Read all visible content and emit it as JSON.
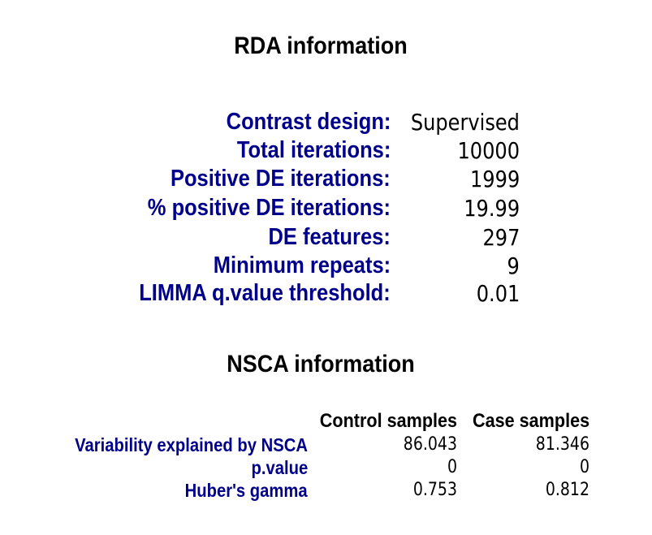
{
  "rda": {
    "title": "RDA information",
    "rows": [
      {
        "label": "Contrast design:",
        "value": "Supervised"
      },
      {
        "label": "Total iterations:",
        "value": "10000"
      },
      {
        "label": "Positive DE iterations:",
        "value": "1999"
      },
      {
        "label": "% positive DE iterations:",
        "value": "19.99"
      },
      {
        "label": "DE features:",
        "value": "297"
      },
      {
        "label": "Minimum repeats:",
        "value": "9"
      },
      {
        "label": "LIMMA q.value threshold:",
        "value": "0.01"
      }
    ]
  },
  "nsca": {
    "title": "NSCA information",
    "columns": [
      "Control samples",
      "Case samples"
    ],
    "rows": [
      {
        "label": "Variability explained by NSCA",
        "control": "86.043",
        "case": "81.346"
      },
      {
        "label": "p.value",
        "control": "0",
        "case": "0"
      },
      {
        "label": "Huber's gamma",
        "control": "0.753",
        "case": "0.812"
      }
    ]
  },
  "colors": {
    "label": "#00008b",
    "value": "#000000",
    "title": "#000000",
    "background": "#ffffff"
  }
}
